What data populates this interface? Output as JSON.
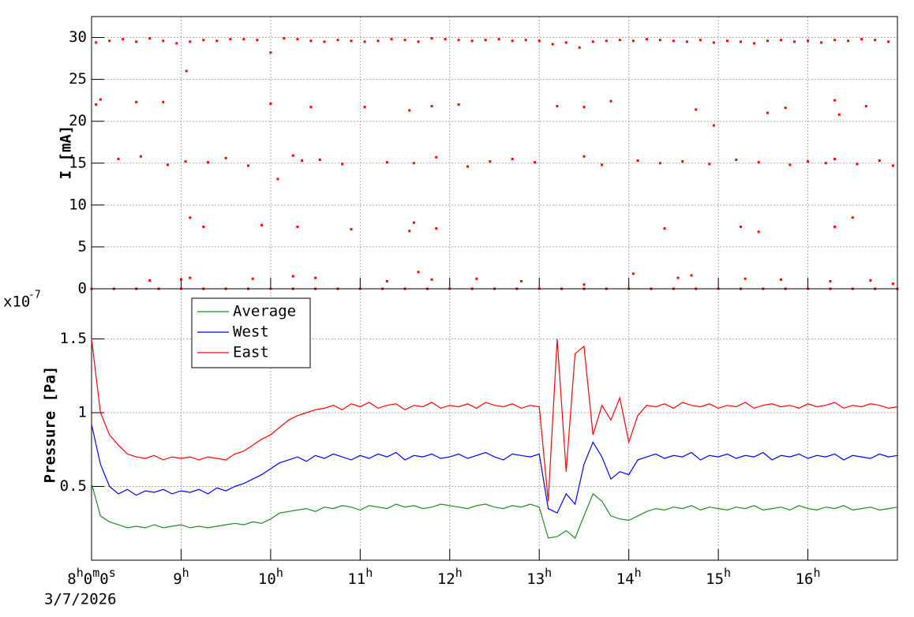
{
  "chart_data": [
    {
      "type": "scatter",
      "y_label": "I [mA]",
      "xlim": [
        8,
        17
      ],
      "ylim": [
        0,
        32.5
      ],
      "xticks": [
        8,
        9,
        10,
        11,
        12,
        13,
        14,
        15,
        16
      ],
      "yticks": [
        0,
        5,
        10,
        15,
        20,
        25,
        30
      ],
      "grid": true,
      "x": [
        8.05,
        8.2,
        8.35,
        8.5,
        8.65,
        8.8,
        8.95,
        9.1,
        9.25,
        9.4,
        9.55,
        9.7,
        9.85,
        10,
        10.15,
        10.3,
        10.45,
        10.6,
        10.75,
        10.9,
        11.05,
        11.2,
        11.35,
        11.5,
        11.65,
        11.8,
        11.95,
        12.1,
        12.25,
        12.4,
        12.55,
        12.7,
        12.85,
        13,
        13.15,
        13.3,
        13.45,
        13.6,
        13.75,
        13.9,
        14.05,
        14.2,
        14.35,
        14.5,
        14.65,
        14.8,
        14.95,
        15.1,
        15.25,
        15.4,
        15.55,
        15.7,
        15.85,
        16,
        16.15,
        16.3,
        16.45,
        16.6,
        16.75,
        16.9,
        8.3,
        8.55,
        8.85,
        9.05,
        9.3,
        9.5,
        9.75,
        10.25,
        10.35,
        10.55,
        10.8,
        11.3,
        11.6,
        11.85,
        12.2,
        12.45,
        12.7,
        12.95,
        13.5,
        13.7,
        14.1,
        14.35,
        14.6,
        14.9,
        15.2,
        15.45,
        15.8,
        16.0,
        16.3,
        16.55,
        16.8,
        16.95,
        8.05,
        8.1,
        8.5,
        8.8,
        9.06,
        9.1,
        9.25,
        9.9,
        10.0,
        10.08,
        10.45,
        10.3,
        10.9,
        11.05,
        11.55,
        11.55,
        11.6,
        11.8,
        11.85,
        12.1,
        13.2,
        13.5,
        13.8,
        14.4,
        14.75,
        14.95,
        15.25,
        15.55,
        15.45,
        15.75,
        16.3,
        16.35,
        16.3,
        16.5,
        16.65,
        16.2,
        8.65,
        9.0,
        9.1,
        9.8,
        10.25,
        10.5,
        11.3,
        11.65,
        11.8,
        12.3,
        12.8,
        13.5,
        14.05,
        14.55,
        14.7,
        15.3,
        15.7,
        16.25,
        16.7,
        16.95,
        8.0,
        8.25,
        8.5,
        8.75,
        9.0,
        9.25,
        9.5,
        9.75,
        10.0,
        10.25,
        10.5,
        10.75,
        11.0,
        11.25,
        11.5,
        11.75,
        12.0,
        12.25,
        12.5,
        12.75,
        13.0,
        13.25,
        13.5,
        13.75,
        14.0,
        14.25,
        14.5,
        14.75,
        15.0,
        15.25,
        15.5,
        15.75,
        16.0,
        16.25,
        16.5,
        16.75,
        17.0
      ],
      "series": [
        {
          "color": "#ff0000",
          "values": [
            29.4,
            29.6,
            29.8,
            29.5,
            29.9,
            29.6,
            29.3,
            29.5,
            29.7,
            29.6,
            29.8,
            29.8,
            29.7,
            28.2,
            29.9,
            29.8,
            29.6,
            29.5,
            29.7,
            29.6,
            29.5,
            29.6,
            29.8,
            29.7,
            29.5,
            29.9,
            29.8,
            29.7,
            29.6,
            29.7,
            29.8,
            29.6,
            29.7,
            29.6,
            29.2,
            29.4,
            28.8,
            29.5,
            29.6,
            29.7,
            29.6,
            29.8,
            29.7,
            29.6,
            29.5,
            29.7,
            29.4,
            29.6,
            29.5,
            29.3,
            29.6,
            29.7,
            29.5,
            29.6,
            29.4,
            29.7,
            29.6,
            29.8,
            29.7,
            29.5,
            15.5,
            15.8,
            14.8,
            15.2,
            15.1,
            15.6,
            14.7,
            15.9,
            15.3,
            15.4,
            14.9,
            15.1,
            15.0,
            15.7,
            14.6,
            15.2,
            15.5,
            15.1,
            15.8,
            14.8,
            15.3,
            15.0,
            15.2,
            14.9,
            15.4,
            15.1,
            14.8,
            15.2,
            15.5,
            14.9,
            15.3,
            14.7,
            22.0,
            22.6,
            22.3,
            22.3,
            26.0,
            8.5,
            7.4,
            7.6,
            22.1,
            13.1,
            21.7,
            7.4,
            7.1,
            21.7,
            21.3,
            6.9,
            7.9,
            21.8,
            7.2,
            22.0,
            21.8,
            21.7,
            22.4,
            7.2,
            21.4,
            19.5,
            7.4,
            21.0,
            6.8,
            21.6,
            22.5,
            20.8,
            7.4,
            8.5,
            21.8,
            15.0,
            1.0,
            1.1,
            1.3,
            1.2,
            1.5,
            1.3,
            0.9,
            2.0,
            1.1,
            1.2,
            0.9,
            0.5,
            1.8,
            1.3,
            1.6,
            1.2,
            1.1,
            0.9,
            1.0,
            0.6,
            0,
            0,
            0,
            0,
            0,
            0,
            0,
            0,
            0,
            0,
            0,
            0,
            0,
            0,
            0,
            0,
            0,
            0,
            0,
            0,
            0,
            0,
            0,
            0,
            0,
            0,
            0,
            0,
            0,
            0,
            0,
            0,
            0,
            0,
            0,
            0,
            0
          ]
        }
      ]
    },
    {
      "type": "line",
      "y_label": "Pressure [Pa]",
      "y_scale_base": "x10",
      "y_scale_exponent": "-7",
      "x_date": "3/7/2026",
      "xlim": [
        8,
        17
      ],
      "ylim": [
        0,
        1.84
      ],
      "xticks": [
        {
          "value": 8,
          "label": "8h0m0s"
        },
        {
          "value": 9,
          "label": "9h"
        },
        {
          "value": 10,
          "label": "10h"
        },
        {
          "value": 11,
          "label": "11h"
        },
        {
          "value": 12,
          "label": "12h"
        },
        {
          "value": 13,
          "label": "13h"
        },
        {
          "value": 14,
          "label": "14h"
        },
        {
          "value": 15,
          "label": "15h"
        },
        {
          "value": 16,
          "label": "16h"
        }
      ],
      "yticks": [
        0.5,
        1,
        1.5
      ],
      "grid": true,
      "legend": "top-left",
      "x": [
        8,
        8.1,
        8.2,
        8.3,
        8.4,
        8.5,
        8.6,
        8.7,
        8.8,
        8.9,
        9,
        9.1,
        9.2,
        9.3,
        9.4,
        9.5,
        9.6,
        9.7,
        9.8,
        9.9,
        10,
        10.1,
        10.2,
        10.3,
        10.4,
        10.5,
        10.6,
        10.7,
        10.8,
        10.9,
        11,
        11.1,
        11.2,
        11.3,
        11.4,
        11.5,
        11.6,
        11.7,
        11.8,
        11.9,
        12,
        12.1,
        12.2,
        12.3,
        12.4,
        12.5,
        12.6,
        12.7,
        12.8,
        12.9,
        13,
        13.1,
        13.2,
        13.3,
        13.4,
        13.5,
        13.6,
        13.7,
        13.8,
        13.9,
        14,
        14.1,
        14.2,
        14.3,
        14.4,
        14.5,
        14.6,
        14.7,
        14.8,
        14.9,
        15,
        15.1,
        15.2,
        15.3,
        15.4,
        15.5,
        15.6,
        15.7,
        15.8,
        15.9,
        16,
        16.1,
        16.2,
        16.3,
        16.4,
        16.5,
        16.6,
        16.7,
        16.8,
        16.9,
        17
      ],
      "series": [
        {
          "name": "Average",
          "color": "#1e8c1e",
          "values": [
            0.52,
            0.3,
            0.26,
            0.24,
            0.22,
            0.23,
            0.22,
            0.24,
            0.22,
            0.23,
            0.24,
            0.22,
            0.23,
            0.22,
            0.23,
            0.24,
            0.25,
            0.24,
            0.26,
            0.25,
            0.28,
            0.32,
            0.33,
            0.34,
            0.35,
            0.33,
            0.36,
            0.35,
            0.37,
            0.36,
            0.34,
            0.37,
            0.36,
            0.35,
            0.38,
            0.36,
            0.37,
            0.35,
            0.36,
            0.38,
            0.37,
            0.36,
            0.35,
            0.37,
            0.38,
            0.36,
            0.35,
            0.37,
            0.36,
            0.38,
            0.36,
            0.15,
            0.16,
            0.2,
            0.15,
            0.3,
            0.45,
            0.4,
            0.3,
            0.28,
            0.27,
            0.3,
            0.33,
            0.35,
            0.34,
            0.36,
            0.35,
            0.37,
            0.34,
            0.36,
            0.35,
            0.34,
            0.36,
            0.35,
            0.37,
            0.34,
            0.35,
            0.36,
            0.34,
            0.37,
            0.35,
            0.34,
            0.36,
            0.35,
            0.37,
            0.34,
            0.35,
            0.36,
            0.34,
            0.35,
            0.36
          ]
        },
        {
          "name": "West",
          "color": "#0000ff",
          "values": [
            0.92,
            0.65,
            0.5,
            0.45,
            0.48,
            0.44,
            0.47,
            0.46,
            0.48,
            0.45,
            0.47,
            0.46,
            0.48,
            0.45,
            0.49,
            0.47,
            0.5,
            0.52,
            0.55,
            0.58,
            0.62,
            0.66,
            0.68,
            0.7,
            0.67,
            0.71,
            0.69,
            0.72,
            0.7,
            0.68,
            0.71,
            0.69,
            0.72,
            0.7,
            0.73,
            0.68,
            0.71,
            0.7,
            0.72,
            0.69,
            0.7,
            0.72,
            0.69,
            0.71,
            0.73,
            0.7,
            0.68,
            0.72,
            0.71,
            0.7,
            0.72,
            0.35,
            0.32,
            0.45,
            0.38,
            0.65,
            0.8,
            0.7,
            0.55,
            0.6,
            0.58,
            0.68,
            0.7,
            0.72,
            0.69,
            0.71,
            0.7,
            0.73,
            0.68,
            0.71,
            0.7,
            0.72,
            0.69,
            0.71,
            0.7,
            0.73,
            0.68,
            0.71,
            0.7,
            0.72,
            0.69,
            0.71,
            0.7,
            0.72,
            0.68,
            0.71,
            0.7,
            0.69,
            0.72,
            0.7,
            0.71
          ]
        },
        {
          "name": "East",
          "color": "#ff0000",
          "values": [
            1.5,
            1.0,
            0.85,
            0.78,
            0.72,
            0.7,
            0.69,
            0.71,
            0.68,
            0.7,
            0.69,
            0.7,
            0.68,
            0.7,
            0.69,
            0.68,
            0.72,
            0.74,
            0.78,
            0.82,
            0.85,
            0.9,
            0.95,
            0.98,
            1.0,
            1.02,
            1.03,
            1.05,
            1.02,
            1.06,
            1.04,
            1.07,
            1.03,
            1.05,
            1.06,
            1.02,
            1.05,
            1.04,
            1.07,
            1.03,
            1.05,
            1.04,
            1.06,
            1.03,
            1.07,
            1.05,
            1.04,
            1.06,
            1.03,
            1.05,
            1.04,
            0.4,
            1.5,
            0.6,
            1.4,
            1.45,
            0.85,
            1.05,
            0.95,
            1.1,
            0.8,
            0.98,
            1.05,
            1.04,
            1.06,
            1.03,
            1.07,
            1.05,
            1.04,
            1.06,
            1.03,
            1.05,
            1.04,
            1.07,
            1.03,
            1.05,
            1.06,
            1.04,
            1.05,
            1.03,
            1.06,
            1.04,
            1.05,
            1.07,
            1.03,
            1.05,
            1.04,
            1.06,
            1.05,
            1.03,
            1.04
          ]
        }
      ]
    }
  ]
}
